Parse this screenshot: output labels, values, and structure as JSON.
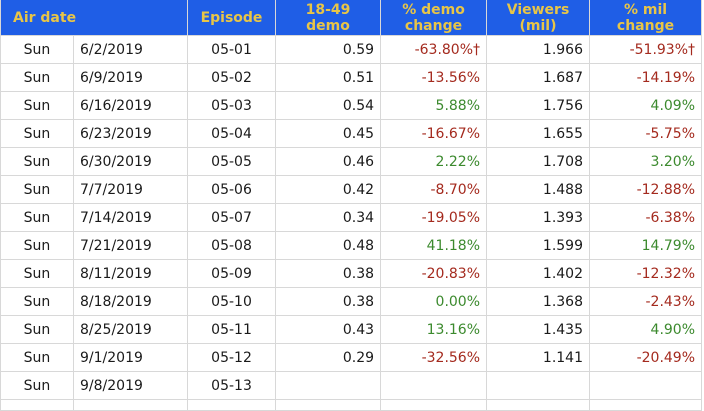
{
  "headers": {
    "air_date": "Air date",
    "episode": "Episode",
    "demo_line1": "18-49",
    "demo_line2": "demo",
    "demo_change_line1": "% demo",
    "demo_change_line2": "change",
    "viewers_line1": "Viewers",
    "viewers_line2": "(mil)",
    "mil_change_line1": "% mil",
    "mil_change_line2": "change"
  },
  "colors": {
    "header_bg": "#1f5ee6",
    "header_text": "#e8c547",
    "negative": "#a42a1e",
    "positive": "#3c8a2e"
  },
  "rows": [
    {
      "day": "Sun",
      "date": "6/2/2019",
      "episode": "05-01",
      "demo": "0.59",
      "demo_change": "-63.80%†",
      "demo_trend": "neg",
      "viewers": "1.966",
      "mil_change": "-51.93%†",
      "mil_trend": "neg"
    },
    {
      "day": "Sun",
      "date": "6/9/2019",
      "episode": "05-02",
      "demo": "0.51",
      "demo_change": "-13.56%",
      "demo_trend": "neg",
      "viewers": "1.687",
      "mil_change": "-14.19%",
      "mil_trend": "neg"
    },
    {
      "day": "Sun",
      "date": "6/16/2019",
      "episode": "05-03",
      "demo": "0.54",
      "demo_change": "5.88%",
      "demo_trend": "pos",
      "viewers": "1.756",
      "mil_change": "4.09%",
      "mil_trend": "pos"
    },
    {
      "day": "Sun",
      "date": "6/23/2019",
      "episode": "05-04",
      "demo": "0.45",
      "demo_change": "-16.67%",
      "demo_trend": "neg",
      "viewers": "1.655",
      "mil_change": "-5.75%",
      "mil_trend": "neg"
    },
    {
      "day": "Sun",
      "date": "6/30/2019",
      "episode": "05-05",
      "demo": "0.46",
      "demo_change": "2.22%",
      "demo_trend": "pos",
      "viewers": "1.708",
      "mil_change": "3.20%",
      "mil_trend": "pos"
    },
    {
      "day": "Sun",
      "date": "7/7/2019",
      "episode": "05-06",
      "demo": "0.42",
      "demo_change": "-8.70%",
      "demo_trend": "neg",
      "viewers": "1.488",
      "mil_change": "-12.88%",
      "mil_trend": "neg"
    },
    {
      "day": "Sun",
      "date": "7/14/2019",
      "episode": "05-07",
      "demo": "0.34",
      "demo_change": "-19.05%",
      "demo_trend": "neg",
      "viewers": "1.393",
      "mil_change": "-6.38%",
      "mil_trend": "neg"
    },
    {
      "day": "Sun",
      "date": "7/21/2019",
      "episode": "05-08",
      "demo": "0.48",
      "demo_change": "41.18%",
      "demo_trend": "pos",
      "viewers": "1.599",
      "mil_change": "14.79%",
      "mil_trend": "pos"
    },
    {
      "day": "Sun",
      "date": "8/11/2019",
      "episode": "05-09",
      "demo": "0.38",
      "demo_change": "-20.83%",
      "demo_trend": "neg",
      "viewers": "1.402",
      "mil_change": "-12.32%",
      "mil_trend": "neg"
    },
    {
      "day": "Sun",
      "date": "8/18/2019",
      "episode": "05-10",
      "demo": "0.38",
      "demo_change": "0.00%",
      "demo_trend": "pos",
      "viewers": "1.368",
      "mil_change": "-2.43%",
      "mil_trend": "neg"
    },
    {
      "day": "Sun",
      "date": "8/25/2019",
      "episode": "05-11",
      "demo": "0.43",
      "demo_change": "13.16%",
      "demo_trend": "pos",
      "viewers": "1.435",
      "mil_change": "4.90%",
      "mil_trend": "pos"
    },
    {
      "day": "Sun",
      "date": "9/1/2019",
      "episode": "05-12",
      "demo": "0.29",
      "demo_change": "-32.56%",
      "demo_trend": "neg",
      "viewers": "1.141",
      "mil_change": "-20.49%",
      "mil_trend": "neg"
    },
    {
      "day": "Sun",
      "date": "9/8/2019",
      "episode": "05-13",
      "demo": "",
      "demo_change": "",
      "demo_trend": "",
      "viewers": "",
      "mil_change": "",
      "mil_trend": ""
    }
  ]
}
